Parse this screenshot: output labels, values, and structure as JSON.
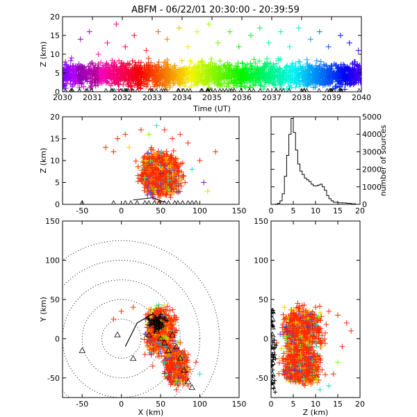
{
  "title": "ABFM - 06/22/01 20:30:00 - 20:39:59",
  "chart_data": [
    {
      "id": "time-height",
      "type": "scatter",
      "xlabel": "Time (UT)",
      "ylabel": "Z (km)",
      "xlim": [
        2030,
        2040
      ],
      "ylim": [
        0,
        20
      ],
      "xticks": [
        "2030",
        "2031",
        "2032",
        "2033",
        "2034",
        "2035",
        "2036",
        "2037",
        "2038",
        "2039",
        "2040"
      ],
      "yticks": [
        "0",
        "5",
        "10",
        "15",
        "20"
      ],
      "colormap": "time-rainbow",
      "series": [
        {
          "values": [
            [
              2030.3,
              9
            ],
            [
              2030.6,
              14
            ],
            [
              2030.9,
              16
            ],
            [
              2031.2,
              10
            ],
            [
              2031.5,
              13
            ],
            [
              2031.8,
              18
            ],
            [
              2032.1,
              12
            ],
            [
              2032.4,
              15
            ],
            [
              2032.8,
              11
            ],
            [
              2033.2,
              16
            ],
            [
              2033.5,
              14
            ],
            [
              2033.9,
              17
            ],
            [
              2034.2,
              12
            ],
            [
              2034.5,
              16
            ],
            [
              2034.9,
              18
            ],
            [
              2035.2,
              13
            ],
            [
              2035.6,
              16
            ],
            [
              2035.9,
              12
            ],
            [
              2036.3,
              15
            ],
            [
              2036.6,
              17
            ],
            [
              2036.9,
              13
            ],
            [
              2037.3,
              16
            ],
            [
              2037.6,
              12
            ],
            [
              2037.9,
              17
            ],
            [
              2038.3,
              14
            ],
            [
              2038.6,
              16
            ],
            [
              2038.9,
              12
            ],
            [
              2039.3,
              15
            ],
            [
              2039.6,
              13
            ],
            [
              2039.9,
              11
            ]
          ]
        }
      ],
      "stations_marker": "triangle"
    },
    {
      "id": "x-z",
      "type": "scatter",
      "xlim": [
        -75,
        150
      ],
      "ylim": [
        0,
        20
      ],
      "ylabel": "Z (km)",
      "xticks": [
        "-50",
        "0",
        "50",
        "100",
        "150"
      ],
      "yticks": [
        "0",
        "5",
        "10",
        "15",
        "20"
      ],
      "series": [
        {
          "values": [
            [
              -10,
              12
            ],
            [
              -5,
              15
            ],
            [
              5,
              16
            ],
            [
              10,
              13
            ],
            [
              25,
              17
            ],
            [
              35,
              16
            ],
            [
              45,
              18
            ],
            [
              55,
              17
            ],
            [
              65,
              15
            ],
            [
              75,
              16
            ],
            [
              85,
              14
            ],
            [
              90,
              8
            ],
            [
              100,
              10
            ],
            [
              105,
              5
            ],
            [
              110,
              3
            ],
            [
              120,
              12
            ],
            [
              -20,
              13
            ]
          ]
        }
      ],
      "stations_marker": "triangle"
    },
    {
      "id": "histogram",
      "type": "bar",
      "xlim": [
        0,
        20
      ],
      "ylim": [
        0,
        5000
      ],
      "ylabel": "number of sources",
      "xticks": [
        "0",
        "5",
        "10",
        "15",
        "20"
      ],
      "yticks": [
        "0",
        "1000",
        "2000",
        "3000",
        "4000",
        "5000"
      ],
      "bins": [
        0.5,
        1.0,
        1.5,
        2.0,
        2.5,
        3.0,
        3.5,
        4.0,
        4.5,
        5.0,
        5.5,
        6.0,
        6.5,
        7.0,
        7.5,
        8.0,
        8.5,
        9.0,
        9.5,
        10.0,
        10.5,
        11.0,
        11.5,
        12.0,
        12.5,
        13.0,
        13.5,
        14.0,
        15.0,
        16.0,
        17.0,
        18.0,
        19.0,
        20.0
      ],
      "counts": [
        0,
        20,
        60,
        200,
        600,
        1600,
        2800,
        4000,
        4900,
        4100,
        3100,
        2300,
        1900,
        1700,
        1500,
        1400,
        1300,
        1150,
        1050,
        1050,
        1100,
        1150,
        1000,
        800,
        500,
        320,
        200,
        120,
        90,
        80,
        60,
        30,
        0
      ]
    },
    {
      "id": "x-y",
      "type": "scatter",
      "xlabel": "X (km)",
      "ylabel": "Y (km)",
      "xlim": [
        -75,
        150
      ],
      "ylim": [
        -75,
        150
      ],
      "xticks": [
        "-50",
        "0",
        "50",
        "100",
        "150"
      ],
      "yticks": [
        "-50",
        "0",
        "50",
        "100",
        "150"
      ],
      "range_rings_km": [
        25,
        50,
        75,
        100,
        125
      ],
      "series": [
        {
          "values": [
            [
              -10,
              25
            ],
            [
              0,
              35
            ],
            [
              15,
              40
            ],
            [
              35,
              38
            ],
            [
              50,
              35
            ],
            [
              60,
              30
            ],
            [
              70,
              10
            ],
            [
              75,
              -5
            ],
            [
              85,
              -20
            ],
            [
              95,
              -30
            ],
            [
              100,
              -45
            ],
            [
              85,
              -60
            ],
            [
              70,
              -65
            ],
            [
              60,
              -50
            ],
            [
              40,
              -35
            ],
            [
              30,
              -20
            ]
          ]
        }
      ],
      "stations_marker": "triangle"
    },
    {
      "id": "z-y",
      "type": "scatter",
      "xlabel": "Z (km)",
      "xlim": [
        0,
        20
      ],
      "ylim": [
        -75,
        150
      ],
      "xticks": [
        "0",
        "5",
        "10",
        "15",
        "20"
      ],
      "yticks": [
        "-50",
        "0",
        "50",
        "100",
        "150"
      ],
      "series": [
        {
          "values": [
            [
              3,
              40
            ],
            [
              6,
              45
            ],
            [
              10,
              40
            ],
            [
              13,
              35
            ],
            [
              15,
              30
            ],
            [
              17,
              20
            ],
            [
              18,
              10
            ],
            [
              16,
              -10
            ],
            [
              15,
              -30
            ],
            [
              14,
              -45
            ],
            [
              13,
              -60
            ],
            [
              11,
              -65
            ],
            [
              9,
              -55
            ]
          ]
        }
      ],
      "stations_marker": "triangle"
    }
  ]
}
